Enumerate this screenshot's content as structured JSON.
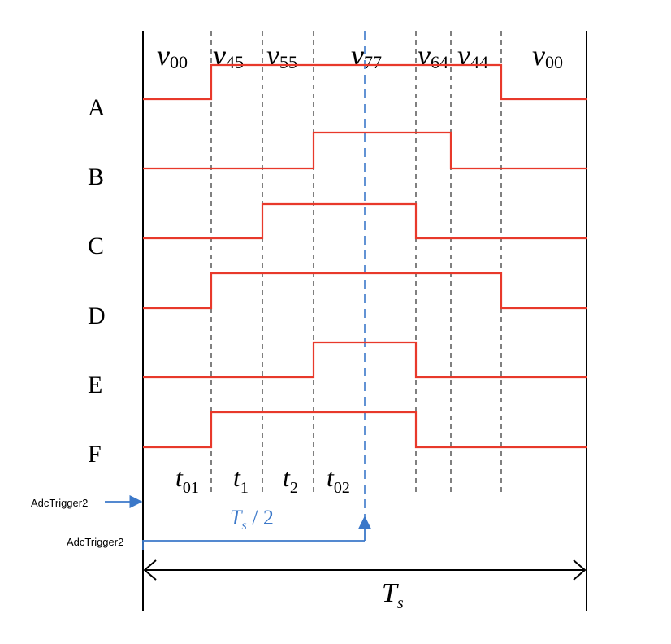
{
  "vectors": [
    {
      "base": "v",
      "sub": "00"
    },
    {
      "base": "v",
      "sub": "45"
    },
    {
      "base": "v",
      "sub": "55"
    },
    {
      "base": "v",
      "sub": "77"
    },
    {
      "base": "v",
      "sub": "64"
    },
    {
      "base": "v",
      "sub": "44"
    },
    {
      "base": "v",
      "sub": "00"
    }
  ],
  "phases": [
    "A",
    "B",
    "C",
    "D",
    "E",
    "F"
  ],
  "intervals": [
    {
      "base": "t",
      "sub": "01"
    },
    {
      "base": "t",
      "sub": "1"
    },
    {
      "base": "t",
      "sub": "2"
    },
    {
      "base": "t",
      "sub": "02"
    }
  ],
  "adc_trigger_label": "AdcTrigger2",
  "half_period": {
    "base": "T",
    "sub": "s",
    "suffix": " / 2"
  },
  "period": {
    "base": "T",
    "sub": "s"
  },
  "colors": {
    "signal": "#e8392b",
    "trigger": "#3b78c9",
    "guide": "#000000"
  }
}
